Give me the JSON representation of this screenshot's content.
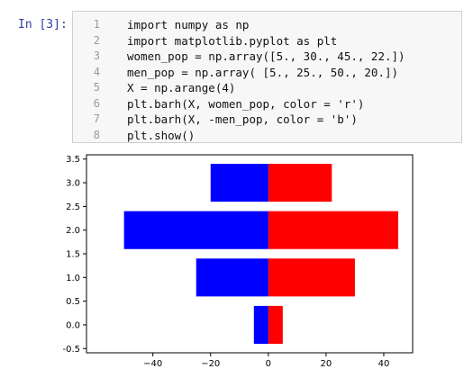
{
  "prompt": "In [3]:",
  "code": {
    "line_numbers": [
      1,
      2,
      3,
      4,
      5,
      6,
      7,
      8
    ],
    "lines": [
      "import numpy as np",
      "import matplotlib.pyplot as plt",
      "women_pop = np.array([5., 30., 45., 22.])",
      "men_pop = np.array( [5., 25., 50., 20.])",
      "X = np.arange(4)",
      "plt.barh(X, women_pop, color = 'r')",
      "plt.barh(X, -men_pop, color = 'b')",
      "plt.show()"
    ]
  },
  "chart_data": {
    "type": "barh",
    "y": [
      0,
      1,
      2,
      3
    ],
    "series": [
      {
        "color": "#ff0000",
        "values": [
          5,
          30,
          45,
          22
        ]
      },
      {
        "color": "#0000ff",
        "values": [
          -5,
          -25,
          -50,
          -20
        ]
      }
    ],
    "xlim": [
      -63,
      50
    ],
    "xticks": [
      {
        "value": -40,
        "label": "−40"
      },
      {
        "value": -20,
        "label": "−20"
      },
      0,
      20,
      40
    ],
    "ylim": [
      -0.59,
      3.59
    ],
    "yticks": [
      -0.5,
      {
        "value": 0,
        "label": "0.0"
      },
      0.5,
      {
        "value": 1,
        "label": "1.0"
      },
      1.5,
      {
        "value": 2,
        "label": "2.0"
      },
      2.5,
      {
        "value": 3,
        "label": "3.0"
      },
      3.5
    ]
  }
}
